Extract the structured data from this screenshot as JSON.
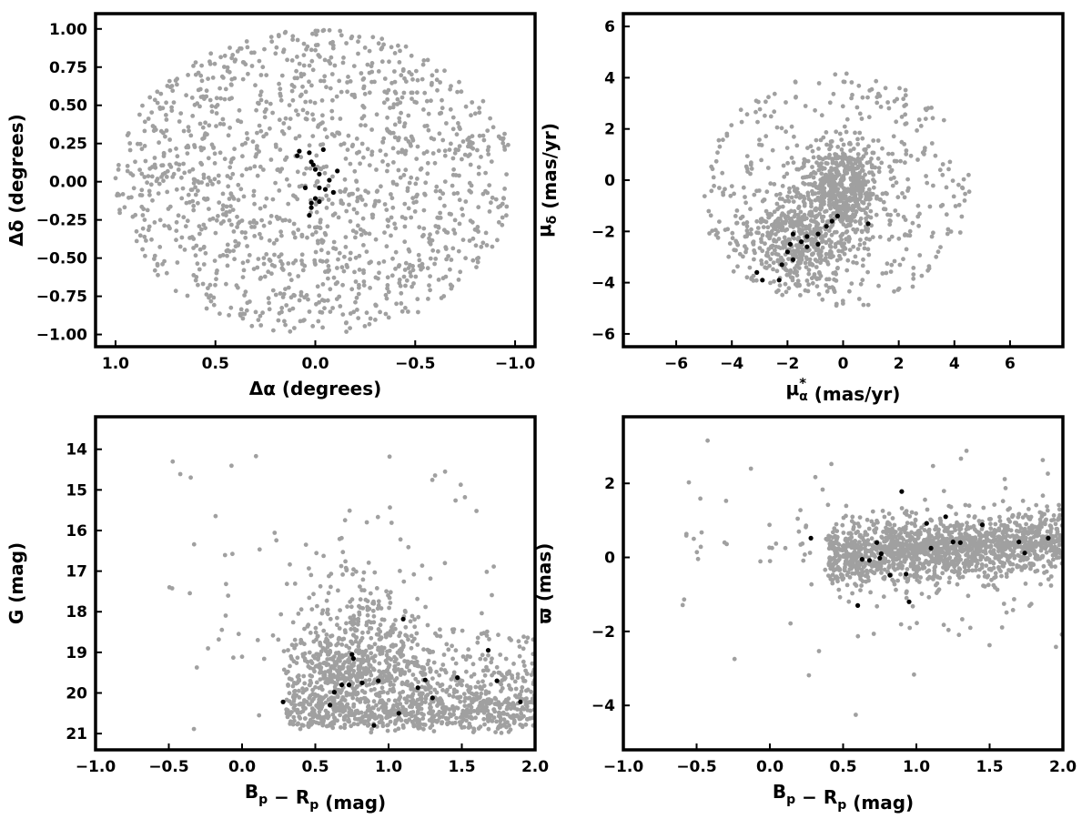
{
  "chart_data": [
    {
      "type": "scatter",
      "id": "sky",
      "xlabel": "Δα (degrees)",
      "ylabel": "Δδ (degrees)",
      "xlim": [
        1.1,
        -1.1
      ],
      "ylim": [
        -1.08,
        1.1
      ],
      "x_inverted": true,
      "xticks": [
        1.0,
        0.5,
        0.0,
        -0.5,
        -1.0
      ],
      "xtick_labels": [
        "1.0",
        "0.5",
        "0.0",
        "−0.5",
        "−1.0"
      ],
      "yticks": [
        -1.0,
        -0.75,
        -0.5,
        -0.25,
        0.0,
        0.25,
        0.5,
        0.75,
        1.0
      ],
      "ytick_labels": [
        "−1.00",
        "−0.75",
        "−0.50",
        "−0.25",
        "0.00",
        "0.25",
        "0.50",
        "0.75",
        "1.00"
      ],
      "grid": false,
      "background": {
        "color": "#a0a0a0",
        "shape": "disk",
        "center": [
          0,
          0
        ],
        "radius": 1.0,
        "approx_count": 1400
      },
      "series": [
        {
          "color": "#000000",
          "points": [
            [
              0.08,
              0.2
            ],
            [
              0.03,
              0.19
            ],
            [
              0.09,
              0.17
            ],
            [
              -0.04,
              0.21
            ],
            [
              0.02,
              0.13
            ],
            [
              0.01,
              0.11
            ],
            [
              0.0,
              0.08
            ],
            [
              -0.11,
              0.07
            ],
            [
              -0.02,
              0.05
            ],
            [
              -0.07,
              0.01
            ],
            [
              0.05,
              -0.04
            ],
            [
              -0.02,
              -0.04
            ],
            [
              -0.05,
              -0.05
            ],
            [
              -0.09,
              -0.07
            ],
            [
              0.0,
              -0.11
            ],
            [
              0.02,
              -0.14
            ],
            [
              -0.02,
              -0.13
            ],
            [
              0.02,
              -0.17
            ],
            [
              0.03,
              -0.22
            ]
          ]
        }
      ]
    },
    {
      "type": "scatter",
      "id": "pm",
      "xlabel": "μα* (mas/yr)",
      "ylabel": "μδ (mas/yr)",
      "xlim": [
        -7.9,
        7.9
      ],
      "ylim": [
        -6.5,
        6.5
      ],
      "xticks": [
        -6,
        -4,
        -2,
        0,
        2,
        4,
        6
      ],
      "xtick_labels": [
        "−6",
        "−4",
        "−2",
        "0",
        "2",
        "4",
        "6"
      ],
      "yticks": [
        -6,
        -4,
        -2,
        0,
        2,
        4,
        6
      ],
      "ytick_labels": [
        "−6",
        "−4",
        "−2",
        "0",
        "2",
        "4",
        "6"
      ],
      "grid": false,
      "background": {
        "color": "#a0a0a0",
        "approx_count": 1400
      },
      "series": [
        {
          "color": "#000000",
          "points": [
            [
              -0.2,
              -1.4
            ],
            [
              -0.4,
              -1.6
            ],
            [
              -0.6,
              -1.8
            ],
            [
              0.9,
              -1.7
            ],
            [
              -0.9,
              -2.1
            ],
            [
              -1.3,
              -2.2
            ],
            [
              -1.8,
              -2.1
            ],
            [
              -1.5,
              -2.4
            ],
            [
              -1.9,
              -2.5
            ],
            [
              -0.9,
              -2.5
            ],
            [
              -1.3,
              -2.6
            ],
            [
              -2.0,
              -2.8
            ],
            [
              -1.8,
              -3.1
            ],
            [
              -2.2,
              -3.3
            ],
            [
              -3.1,
              -3.6
            ],
            [
              -2.9,
              -3.9
            ],
            [
              -2.3,
              -3.9
            ]
          ]
        }
      ]
    },
    {
      "type": "scatter",
      "id": "cmd",
      "xlabel": "Bp − Rp (mag)",
      "ylabel": "G (mag)",
      "xlim": [
        -1.0,
        2.0
      ],
      "ylim": [
        21.4,
        13.2
      ],
      "y_inverted": true,
      "xticks": [
        -1.0,
        -0.5,
        0.0,
        0.5,
        1.0,
        1.5,
        2.0
      ],
      "xtick_labels": [
        "−1.0",
        "−0.5",
        "0.0",
        "0.5",
        "1.0",
        "1.5",
        "2.0"
      ],
      "yticks": [
        14,
        15,
        16,
        17,
        18,
        19,
        20,
        21
      ],
      "ytick_labels": [
        "14",
        "15",
        "16",
        "17",
        "18",
        "19",
        "20",
        "21"
      ],
      "grid": false,
      "background": {
        "color": "#a0a0a0",
        "approx_count": 1600
      },
      "series": [
        {
          "color": "#000000",
          "points": [
            [
              0.28,
              20.22
            ],
            [
              0.6,
              20.3
            ],
            [
              0.63,
              19.98
            ],
            [
              0.68,
              19.8
            ],
            [
              0.73,
              19.8
            ],
            [
              0.75,
              19.05
            ],
            [
              0.76,
              19.15
            ],
            [
              0.82,
              19.75
            ],
            [
              0.9,
              20.8
            ],
            [
              0.93,
              19.7
            ],
            [
              1.07,
              20.5
            ],
            [
              1.1,
              18.18
            ],
            [
              1.2,
              19.87
            ],
            [
              1.25,
              19.68
            ],
            [
              1.3,
              20.12
            ],
            [
              1.47,
              19.62
            ],
            [
              1.68,
              18.95
            ],
            [
              1.74,
              19.7
            ],
            [
              1.9,
              20.22
            ]
          ]
        }
      ]
    },
    {
      "type": "scatter",
      "id": "parallax",
      "xlabel": "Bp − Rp (mag)",
      "ylabel": "ϖ (mas)",
      "xlim": [
        -1.0,
        2.0
      ],
      "ylim": [
        -5.2,
        3.8
      ],
      "xticks": [
        -1.0,
        -0.5,
        0.0,
        0.5,
        1.0,
        1.5,
        2.0
      ],
      "xtick_labels": [
        "−1.0",
        "−0.5",
        "0.0",
        "0.5",
        "1.0",
        "1.5",
        "2.0"
      ],
      "yticks": [
        -4,
        -2,
        0,
        2
      ],
      "ytick_labels": [
        "−4",
        "−2",
        "0",
        "2"
      ],
      "grid": false,
      "background": {
        "color": "#a0a0a0",
        "approx_count": 1600
      },
      "series": [
        {
          "color": "#000000",
          "points": [
            [
              0.28,
              0.52
            ],
            [
              0.6,
              -1.3
            ],
            [
              0.63,
              -0.05
            ],
            [
              0.68,
              -0.08
            ],
            [
              0.73,
              0.4
            ],
            [
              0.75,
              -0.02
            ],
            [
              0.76,
              0.1
            ],
            [
              0.82,
              -0.48
            ],
            [
              0.9,
              1.78
            ],
            [
              0.93,
              -0.45
            ],
            [
              0.95,
              -1.2
            ],
            [
              1.07,
              0.92
            ],
            [
              1.1,
              0.25
            ],
            [
              1.2,
              1.1
            ],
            [
              1.25,
              0.42
            ],
            [
              1.3,
              0.4
            ],
            [
              1.45,
              0.88
            ],
            [
              1.7,
              0.42
            ],
            [
              1.74,
              0.12
            ],
            [
              1.9,
              0.52
            ]
          ]
        }
      ]
    }
  ]
}
